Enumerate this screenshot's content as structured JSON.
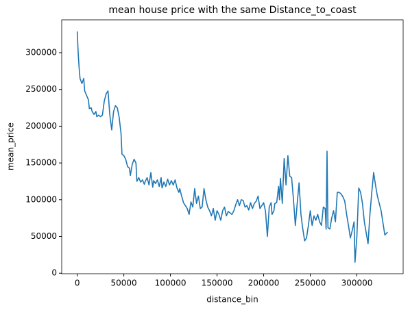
{
  "chart_data": {
    "type": "line",
    "title": "mean house price with the same Distance_to_coast",
    "x_label": "distance_bin",
    "y_label": "mean_price",
    "x": [
      0,
      1000,
      2000,
      3000,
      5000,
      7000,
      8000,
      10000,
      12000,
      13000,
      15000,
      16000,
      18000,
      20000,
      21000,
      23000,
      25000,
      27000,
      29000,
      31000,
      33000,
      35000,
      37000,
      39000,
      41000,
      43000,
      45000,
      47000,
      48000,
      50000,
      52000,
      54000,
      56000,
      57000,
      59000,
      61000,
      63000,
      64000,
      66000,
      68000,
      70000,
      72000,
      73000,
      75000,
      77000,
      79000,
      81000,
      82000,
      84000,
      86000,
      88000,
      90000,
      91000,
      93000,
      95000,
      97000,
      99000,
      101000,
      103000,
      105000,
      107000,
      109000,
      110000,
      112000,
      114000,
      116000,
      118000,
      120000,
      122000,
      124000,
      126000,
      128000,
      130000,
      132000,
      134000,
      136000,
      138000,
      140000,
      142000,
      144000,
      146000,
      148000,
      150000,
      152000,
      154000,
      156000,
      158000,
      160000,
      162000,
      164000,
      166000,
      168000,
      170000,
      172000,
      174000,
      176000,
      178000,
      180000,
      182000,
      184000,
      186000,
      188000,
      190000,
      192000,
      194000,
      196000,
      198000,
      200000,
      202000,
      204000,
      206000,
      208000,
      209000,
      211000,
      212000,
      214000,
      216000,
      217000,
      218000,
      220000,
      222000,
      224000,
      226000,
      228000,
      230000,
      232000,
      234000,
      236000,
      238000,
      240000,
      242000,
      244000,
      246000,
      248000,
      250000,
      252000,
      254000,
      256000,
      258000,
      260000,
      262000,
      264000,
      266000,
      267000,
      268000,
      269000,
      271000,
      273000,
      275000,
      277000,
      279000,
      281000,
      283000,
      285000,
      287000,
      289000,
      291000,
      293000,
      295000,
      297000,
      298000,
      300000,
      302000,
      304000,
      306000,
      308000,
      310000,
      312000,
      314000,
      316000,
      318000,
      320000,
      322000,
      326000,
      330000,
      333000
    ],
    "series": [
      {
        "name": "mean_price",
        "color": "#1f77b4",
        "values": [
          329000,
          300000,
          280000,
          265000,
          258000,
          265000,
          248000,
          242000,
          236000,
          224000,
          225000,
          220000,
          216000,
          220000,
          213000,
          215000,
          213000,
          215000,
          234000,
          244000,
          248000,
          215000,
          195000,
          220000,
          228000,
          225000,
          212000,
          190000,
          162000,
          160000,
          155000,
          145000,
          143000,
          133000,
          148000,
          155000,
          150000,
          125000,
          130000,
          124000,
          127000,
          121000,
          125000,
          130000,
          120000,
          137000,
          117000,
          126000,
          122000,
          127000,
          118000,
          130000,
          116000,
          124000,
          118000,
          128000,
          120000,
          126000,
          120000,
          127000,
          116000,
          110000,
          115000,
          105000,
          96000,
          92000,
          88000,
          80000,
          97000,
          90000,
          115000,
          95000,
          105000,
          88000,
          90000,
          115000,
          100000,
          90000,
          85000,
          78000,
          88000,
          72000,
          85000,
          80000,
          72000,
          85000,
          90000,
          78000,
          84000,
          82000,
          80000,
          85000,
          93000,
          100000,
          92000,
          100000,
          99000,
          90000,
          92000,
          86000,
          96000,
          88000,
          95000,
          98000,
          105000,
          88000,
          92000,
          96000,
          84000,
          50000,
          90000,
          96000,
          80000,
          85000,
          95000,
          96000,
          118000,
          100000,
          129000,
          95000,
          156000,
          120000,
          160000,
          132000,
          130000,
          100000,
          65000,
          95000,
          123000,
          80000,
          60000,
          44000,
          48000,
          65000,
          85000,
          65000,
          78000,
          72000,
          80000,
          70000,
          65000,
          90000,
          88000,
          60000,
          166000,
          62000,
          60000,
          75000,
          85000,
          70000,
          110000,
          110000,
          108000,
          104000,
          98000,
          80000,
          65000,
          48000,
          58000,
          70000,
          15000,
          50000,
          116000,
          110000,
          95000,
          70000,
          55000,
          40000,
          80000,
          110000,
          137000,
          120000,
          105000,
          85000,
          52000,
          56000
        ]
      }
    ],
    "xlim": [
      -16650,
      349650
    ],
    "ylim": [
      -700,
      344700
    ],
    "xticks": [
      0,
      50000,
      100000,
      150000,
      200000,
      250000,
      300000
    ],
    "yticks": [
      0,
      50000,
      100000,
      150000,
      200000,
      250000,
      300000
    ],
    "grid": false
  }
}
